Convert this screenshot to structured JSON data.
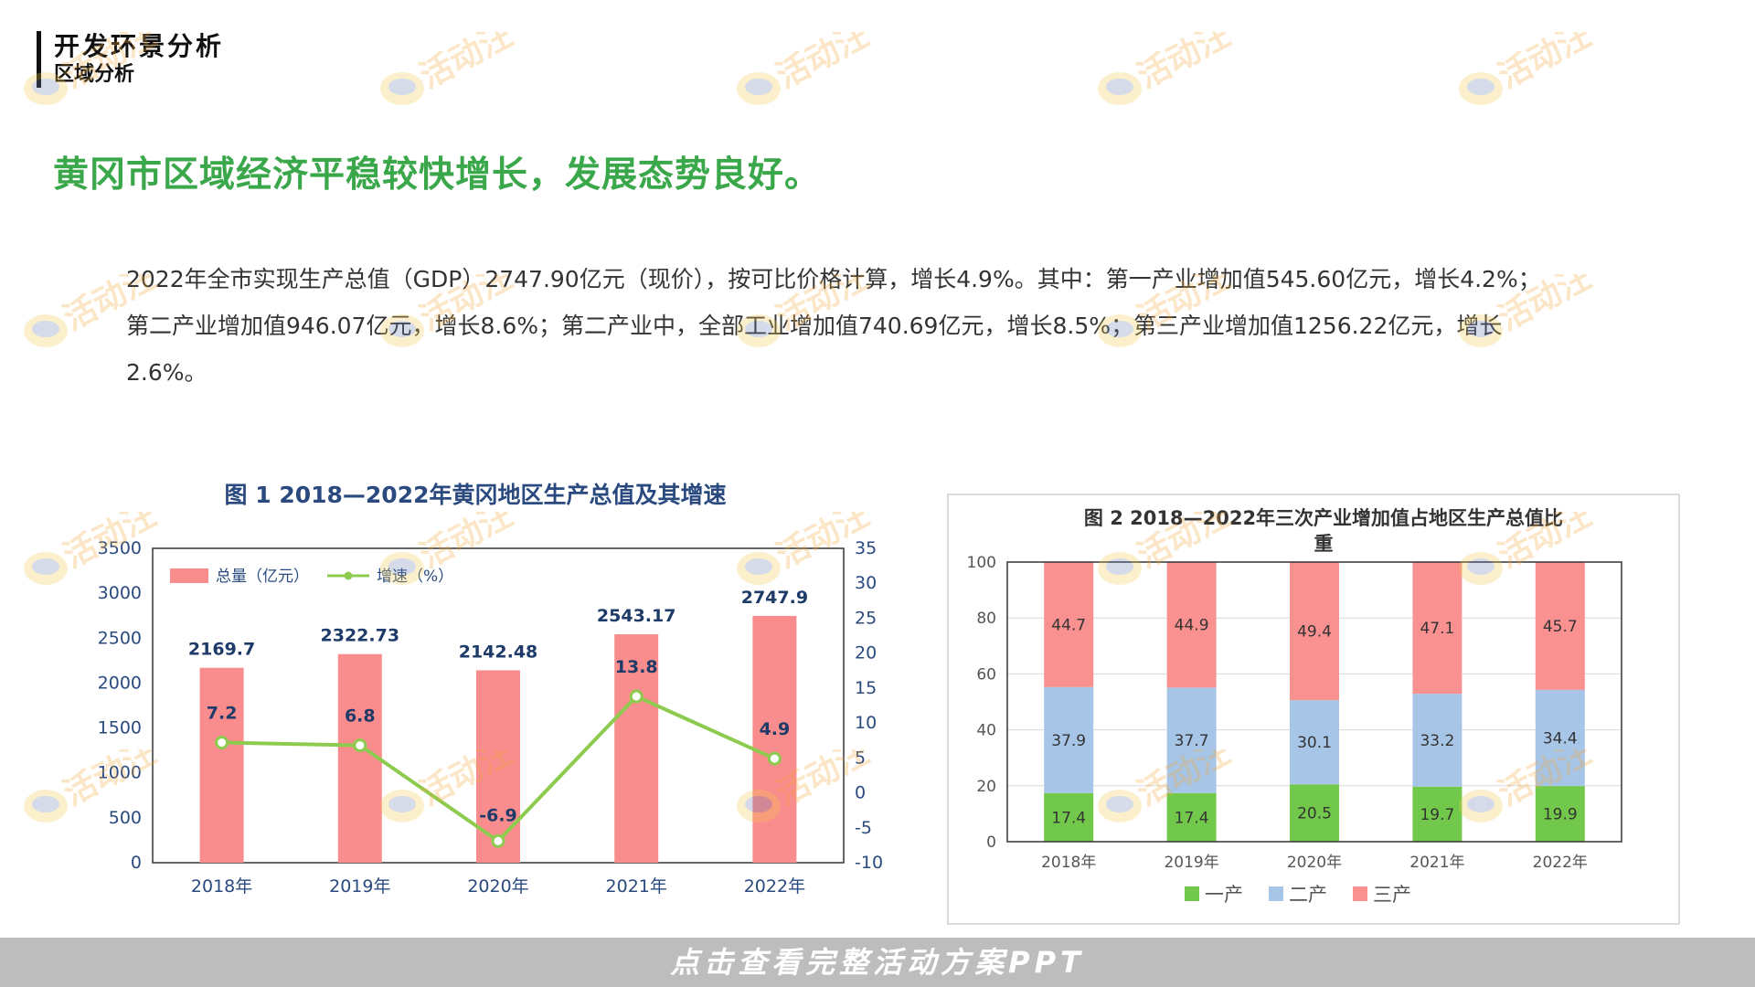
{
  "header": {
    "title": "开发环景分析",
    "subtitle": "区域分析"
  },
  "headline": "黄冈市区域经济平稳较快增长，发展态势良好。",
  "body_lines": [
    "2022年全市实现生产总值（GDP）2747.90亿元（现价），按可比价格计算，增长4.9%。其中：第一产业增加值545.60亿元，增长4.2%；",
    "第二产业增加值946.07亿元，增长8.6%；第二产业中，全部工业增加值740.69亿元，增长8.5%；第三产业增加值1256.22亿元，增长",
    "2.6%。"
  ],
  "watermark_text": "活动汪",
  "bottom_bar_text": "点击查看完整活动方案PPT",
  "colors": {
    "bar": "#f98d8d",
    "line": "#8dcb4f",
    "axis_text": "#2a4a7f",
    "primary": "#72c84a",
    "secondary": "#a7c6e7",
    "tertiary": "#f99191",
    "headline": "#3aa84a"
  },
  "chart_data": [
    {
      "type": "bar",
      "title": "图 1    2018—2022年黄冈地区生产总值及其增速",
      "categories": [
        "2018年",
        "2019年",
        "2020年",
        "2021年",
        "2022年"
      ],
      "series": [
        {
          "name": "总量（亿元）",
          "type": "bar",
          "values": [
            2169.7,
            2322.73,
            2142.48,
            2543.17,
            2747.9
          ]
        },
        {
          "name": "增速（%）",
          "type": "line",
          "axis": "right",
          "values": [
            7.2,
            6.8,
            -6.9,
            13.8,
            4.9
          ]
        }
      ],
      "left_axis": {
        "ylim": [
          0,
          3500
        ],
        "ticks": [
          "0",
          "500",
          "1000",
          "1500",
          "2000",
          "2500",
          "3000",
          "3500"
        ]
      },
      "right_axis": {
        "ylim": [
          -10,
          35
        ],
        "ticks": [
          "-10",
          "-5",
          "0",
          "5",
          "10",
          "15",
          "20",
          "25",
          "30",
          "35"
        ]
      },
      "legend": "top-left"
    },
    {
      "type": "bar",
      "stacked": true,
      "title": "图  2     2018—2022年三次产业增加值占地区生产总值比",
      "title_line2": "重",
      "categories": [
        "2018年",
        "2019年",
        "2020年",
        "2021年",
        "2022年"
      ],
      "series": [
        {
          "name": "一产",
          "values": [
            17.4,
            17.4,
            20.5,
            19.7,
            19.9
          ]
        },
        {
          "name": "二产",
          "values": [
            37.9,
            37.7,
            30.1,
            33.2,
            34.4
          ]
        },
        {
          "name": "三产",
          "values": [
            44.7,
            44.9,
            49.4,
            47.1,
            45.7
          ]
        }
      ],
      "ylim": [
        0,
        100
      ],
      "ticks": [
        "0",
        "20",
        "40",
        "60",
        "80",
        "100"
      ],
      "legend": "bottom",
      "grid": true
    }
  ]
}
